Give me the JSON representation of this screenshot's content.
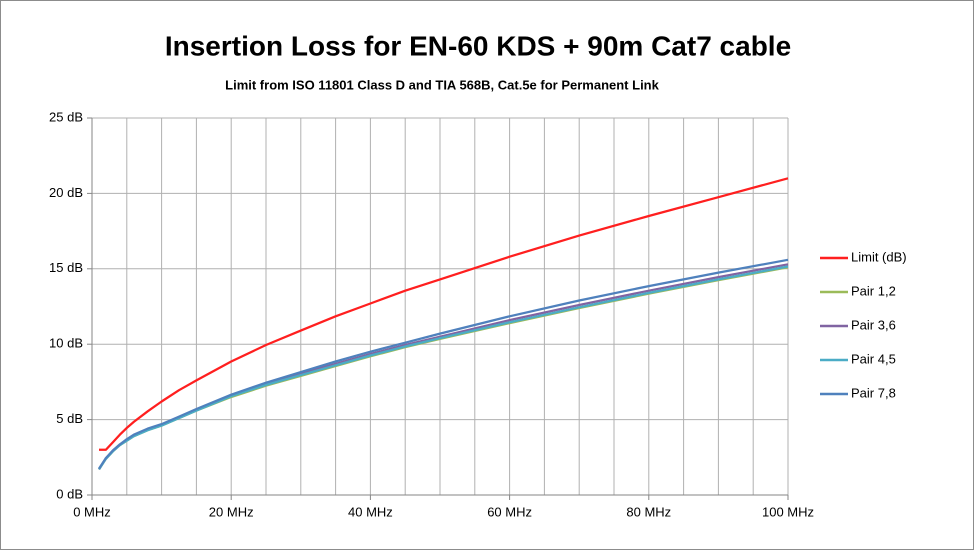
{
  "chart_data": {
    "type": "line",
    "title": "Insertion Loss for EN-60 KDS + 90m Cat7 cable",
    "subtitle": "Limit from ISO 11801 Class D and TIA 568B, Cat.5e for Permanent Link",
    "x": [
      1,
      2,
      3,
      4,
      5,
      6,
      8,
      10,
      12.5,
      15,
      20,
      25,
      30,
      35,
      40,
      45,
      50,
      60,
      70,
      80,
      90,
      100
    ],
    "series": [
      {
        "name": "Limit (dB)",
        "color": "#ff1f1f",
        "values": [
          3,
          3,
          3.5,
          4.0,
          4.45,
          4.85,
          5.55,
          6.2,
          6.95,
          7.6,
          8.85,
          9.95,
          10.9,
          11.85,
          12.7,
          13.55,
          14.3,
          15.8,
          17.2,
          18.5,
          19.75,
          21.0
        ]
      },
      {
        "name": "Pair 1,2",
        "color": "#9bbb59",
        "values": [
          1.7,
          2.4,
          2.9,
          3.3,
          3.6,
          3.9,
          4.3,
          4.6,
          5.1,
          5.6,
          6.5,
          7.25,
          7.9,
          8.55,
          9.2,
          9.8,
          10.35,
          11.4,
          12.4,
          13.35,
          14.25,
          15.1
        ]
      },
      {
        "name": "Pair 3,6",
        "color": "#8064a2",
        "values": [
          1.7,
          2.45,
          2.95,
          3.35,
          3.65,
          3.95,
          4.35,
          4.65,
          5.15,
          5.65,
          6.6,
          7.35,
          8.05,
          8.7,
          9.35,
          9.95,
          10.5,
          11.6,
          12.6,
          13.55,
          14.45,
          15.3
        ]
      },
      {
        "name": "Pair 4,5",
        "color": "#4bacc6",
        "values": [
          1.7,
          2.4,
          2.9,
          3.3,
          3.6,
          3.9,
          4.3,
          4.6,
          5.1,
          5.6,
          6.55,
          7.3,
          7.95,
          8.6,
          9.25,
          9.85,
          10.4,
          11.45,
          12.45,
          13.4,
          14.3,
          15.15
        ]
      },
      {
        "name": "Pair 7,8",
        "color": "#4f81bd",
        "values": [
          1.75,
          2.45,
          2.95,
          3.35,
          3.7,
          4.0,
          4.4,
          4.7,
          5.2,
          5.7,
          6.65,
          7.45,
          8.15,
          8.85,
          9.5,
          10.1,
          10.7,
          11.85,
          12.9,
          13.85,
          14.75,
          15.6
        ]
      }
    ],
    "xlim": [
      0,
      100
    ],
    "xticks": [
      {
        "value": 0,
        "label": "0 MHz"
      },
      {
        "value": 20,
        "label": "20 MHz"
      },
      {
        "value": 40,
        "label": "40 MHz"
      },
      {
        "value": 60,
        "label": "60 MHz"
      },
      {
        "value": 80,
        "label": "80 MHz"
      },
      {
        "value": 100,
        "label": "100 MHz"
      }
    ],
    "xminorgrid": [
      5,
      10,
      15,
      25,
      30,
      35,
      45,
      50,
      55,
      65,
      70,
      75,
      85,
      90,
      95
    ],
    "ylim": [
      0,
      25
    ],
    "yticks": [
      {
        "value": 0,
        "label": "0 dB"
      },
      {
        "value": 5,
        "label": "5 dB"
      },
      {
        "value": 10,
        "label": "10 dB"
      },
      {
        "value": 15,
        "label": "15 dB"
      },
      {
        "value": 20,
        "label": "20 dB"
      },
      {
        "value": 25,
        "label": "25 dB"
      }
    ],
    "grid": true,
    "legend": "right"
  }
}
